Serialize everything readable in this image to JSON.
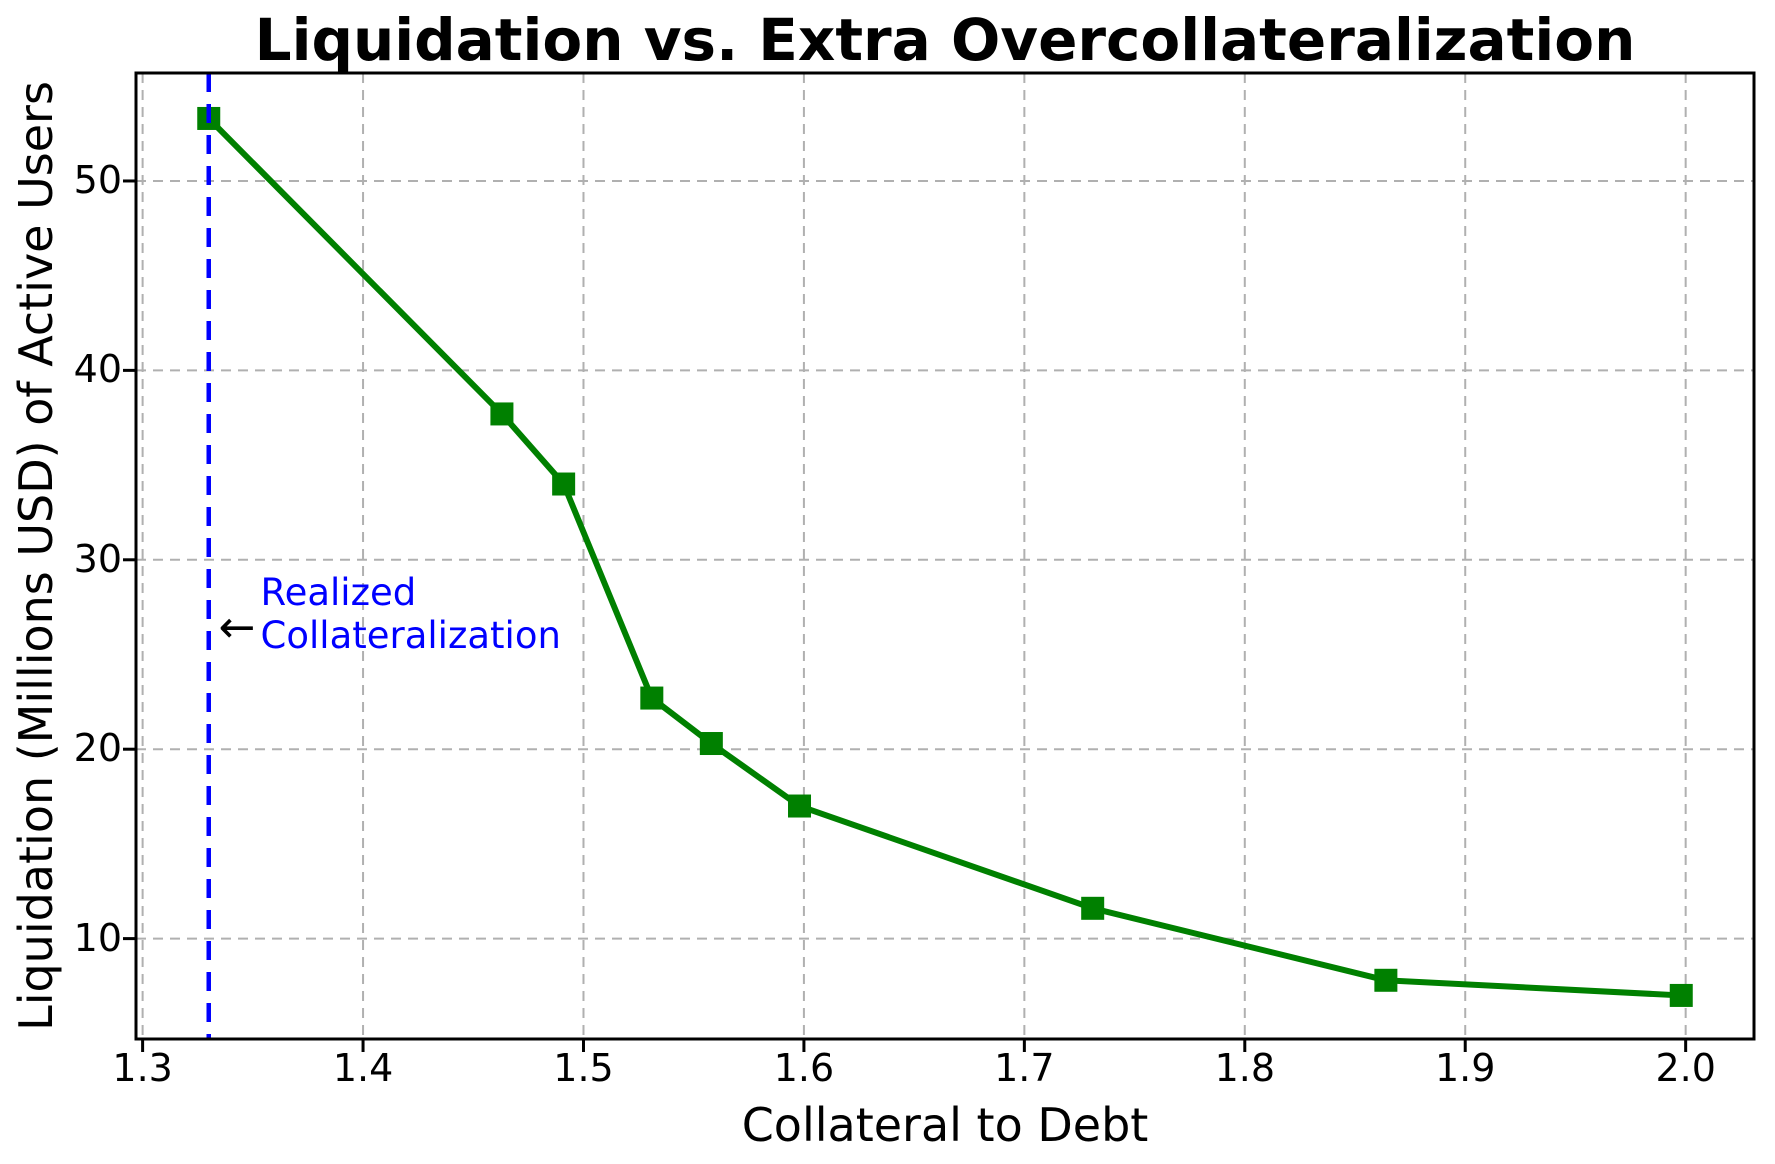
{
  "chart": {
    "title": "Liquidation vs. Extra Overcollateralization",
    "xlabel": "Collateral to Debt",
    "ylabel": "Liquidation (Millions USD) of Active Users",
    "annotation": {
      "line1": "Realized",
      "line2": "Collateralization",
      "arrow_glyph": "←"
    }
  },
  "chart_data": {
    "type": "line",
    "title": "Liquidation vs. Extra Overcollateralization",
    "xlabel": "Collateral to Debt",
    "ylabel": "Liquidation (Millions USD) of Active Users",
    "series": [
      {
        "name": "Liquidation",
        "x": [
          1.33,
          1.463,
          1.491,
          1.531,
          1.558,
          1.598,
          1.731,
          1.864,
          1.998
        ],
        "y": [
          53.3,
          37.7,
          34.0,
          22.7,
          20.3,
          17.0,
          11.6,
          7.8,
          7.0
        ],
        "color": "#008000",
        "marker": "square"
      }
    ],
    "xlim": [
      1.297,
      2.031
    ],
    "ylim": [
      4.7,
      55.7
    ],
    "x_ticks": [
      1.3,
      1.4,
      1.5,
      1.6,
      1.7,
      1.8,
      1.9,
      2.0
    ],
    "x_tick_labels": [
      "1.3",
      "1.4",
      "1.5",
      "1.6",
      "1.7",
      "1.8",
      "1.9",
      "2.0"
    ],
    "y_ticks": [
      10,
      20,
      30,
      40,
      50
    ],
    "y_tick_labels": [
      "10",
      "20",
      "30",
      "40",
      "50"
    ],
    "grid": true,
    "grid_color": "#b0b0b0",
    "legend": "none",
    "vline": {
      "x": 1.33,
      "color": "#0000ff",
      "style": "dashed",
      "label": "Realized Collateralization"
    },
    "annotation": {
      "text": "Realized\nCollateralization",
      "color": "#0000ff",
      "arrow_x": 1.3345,
      "arrow_y": 26.4,
      "text_x": 1.3535,
      "text_y": 29.35
    }
  }
}
